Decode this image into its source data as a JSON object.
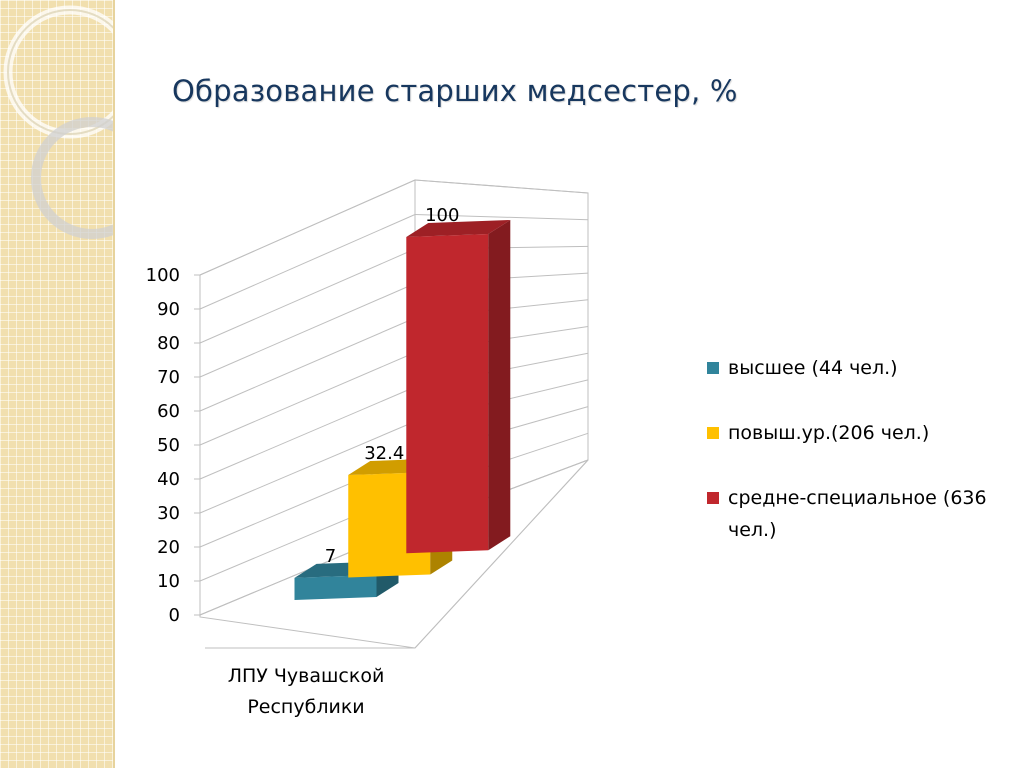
{
  "slide": {
    "title": "Образование старших медсестер, %"
  },
  "chart_data": {
    "type": "bar",
    "title": "Образование старших медсестер, %",
    "categories": [
      "ЛПУ Чувашской Республики"
    ],
    "category_label_lines": [
      "ЛПУ Чувашской",
      "Республики"
    ],
    "series": [
      {
        "name": "высшее (44 чел.)",
        "values": [
          7
        ],
        "color": "#31849b"
      },
      {
        "name": "повыш.ур.(206 чел.)",
        "values": [
          32.4
        ],
        "color": "#ffc000"
      },
      {
        "name": "средне-специальное (636 чел.)",
        "values": [
          100
        ],
        "color": "#c0272d"
      }
    ],
    "data_labels": [
      "7",
      "32.4",
      "100"
    ],
    "ylim": [
      0,
      100
    ],
    "yticks": [
      "0",
      "10",
      "20",
      "30",
      "40",
      "50",
      "60",
      "70",
      "80",
      "90",
      "100"
    ],
    "grid": true,
    "legend_position": "right",
    "xlabel": "",
    "ylabel": ""
  },
  "legend": {
    "items": [
      {
        "label": "высшее (44 чел.)",
        "color": "#31849b"
      },
      {
        "label": "повыш.ур.(206 чел.)",
        "color": "#ffc000"
      },
      {
        "label": "средне-специальное (636 чел.)",
        "color": "#c0272d"
      }
    ]
  }
}
